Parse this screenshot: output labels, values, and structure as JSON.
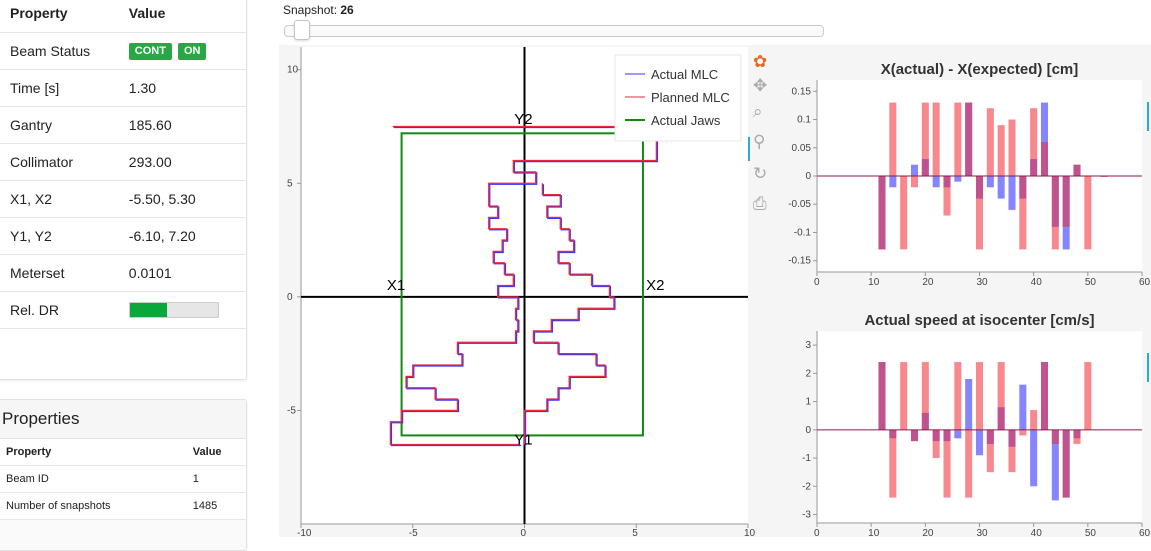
{
  "left_panel": {
    "header": {
      "property": "Property",
      "value": "Value"
    },
    "rows": [
      {
        "label": "Beam Status",
        "badges": [
          "CONT",
          "ON"
        ]
      },
      {
        "label": "Time [s]",
        "value": "1.30"
      },
      {
        "label": "Gantry",
        "value": "185.60"
      },
      {
        "label": "Collimator",
        "value": "293.00"
      },
      {
        "label": "X1, X2",
        "value": "-5.50, 5.30"
      },
      {
        "label": "Y1, Y2",
        "value": "-6.10, 7.20"
      },
      {
        "label": "Meterset",
        "value": "0.0101"
      },
      {
        "label": "Rel. DR",
        "progress": 0.42
      }
    ]
  },
  "properties_panel": {
    "title": "Properties",
    "header": {
      "property": "Property",
      "value": "Value"
    },
    "rows": [
      {
        "label": "Beam ID",
        "value": "1"
      },
      {
        "label": "Number of snapshots",
        "value": "1485"
      }
    ]
  },
  "slider": {
    "label": "Snapshot: ",
    "value": "26",
    "position_fraction": 0.017
  },
  "toolbar": {
    "icons": [
      "bokeh-logo-icon",
      "pan-icon",
      "box-zoom-icon",
      "wheel-zoom-icon",
      "reset-icon",
      "save-icon"
    ]
  },
  "colors": {
    "actual": "#3333ff",
    "planned": "#e8293e",
    "jaws": "#128a12",
    "badge": "#28a745",
    "dr_fill": "#0aa83c"
  },
  "chart_data": [
    {
      "type": "line",
      "title": "",
      "xlim": [
        -10,
        10
      ],
      "ylim": [
        -10,
        11
      ],
      "x_ticks": [
        -10,
        -5,
        0,
        5,
        10
      ],
      "y_ticks": [
        -5,
        0,
        5,
        10
      ],
      "legend": [
        "Actual MLC",
        "Planned MLC",
        "Actual Jaws"
      ],
      "legend_position": "top-right",
      "annotations": [
        {
          "text": "X1",
          "x": -5.8,
          "y": 0.3
        },
        {
          "text": "X2",
          "x": 5.8,
          "y": 0.3
        },
        {
          "text": "Y2",
          "x": -0.1,
          "y": 7.6
        },
        {
          "text": "Y1",
          "x": -0.1,
          "y": -6.5
        }
      ],
      "jaws": {
        "x1": -5.5,
        "x2": 5.3,
        "y1": -6.1,
        "y2": 7.2
      },
      "mlc_outline": [
        [
          -5.9,
          7.5
        ],
        [
          5.9,
          7.5
        ],
        [
          5.9,
          7.5
        ],
        [
          5.9,
          7.0
        ],
        [
          5.9,
          6.0
        ],
        [
          -0.5,
          6.0
        ],
        [
          -0.5,
          5.5
        ],
        [
          0.5,
          5.5
        ],
        [
          0.5,
          5.0
        ],
        [
          -1.6,
          5.0
        ],
        [
          -1.6,
          4.0
        ],
        [
          -1.2,
          4.0
        ],
        [
          -1.2,
          3.5
        ],
        [
          -1.6,
          3.5
        ],
        [
          -1.6,
          3.0
        ],
        [
          -0.8,
          3.0
        ],
        [
          -0.8,
          2.5
        ],
        [
          -1.0,
          2.5
        ],
        [
          -1.0,
          2.0
        ],
        [
          -1.4,
          2.0
        ],
        [
          -1.4,
          1.5
        ],
        [
          -0.9,
          1.5
        ],
        [
          -0.9,
          1.0
        ],
        [
          -0.5,
          1.0
        ],
        [
          -0.5,
          0.5
        ],
        [
          -1.2,
          0.5
        ],
        [
          -1.2,
          0.0
        ],
        [
          -0.3,
          0.0
        ],
        [
          -0.3,
          -0.5
        ],
        [
          -0.4,
          -0.5
        ],
        [
          -0.4,
          -1.0
        ],
        [
          -0.3,
          -1.0
        ],
        [
          -0.3,
          -1.5
        ],
        [
          -0.4,
          -1.5
        ],
        [
          -0.4,
          -2.0
        ],
        [
          -3.0,
          -2.0
        ],
        [
          -3.0,
          -2.5
        ],
        [
          -2.8,
          -2.5
        ],
        [
          -2.8,
          -3.0
        ],
        [
          -5.0,
          -3.0
        ],
        [
          -5.0,
          -3.5
        ],
        [
          -5.3,
          -3.5
        ],
        [
          -5.3,
          -4.0
        ],
        [
          -4.0,
          -4.0
        ],
        [
          -4.0,
          -4.5
        ],
        [
          -3.0,
          -4.5
        ],
        [
          -3.0,
          -5.0
        ],
        [
          -5.5,
          -5.0
        ],
        [
          -5.5,
          -5.5
        ],
        [
          -6.0,
          -5.5
        ],
        [
          -6.0,
          -6.5
        ],
        [
          -0.2,
          -6.5
        ]
      ],
      "mlc_right": [
        [
          0.0,
          -6.5
        ],
        [
          0.0,
          -5.0
        ],
        [
          1.0,
          -5.0
        ],
        [
          1.0,
          -4.5
        ],
        [
          1.5,
          -4.5
        ],
        [
          1.5,
          -4.0
        ],
        [
          2.0,
          -4.0
        ],
        [
          2.0,
          -3.5
        ],
        [
          3.6,
          -3.5
        ],
        [
          3.6,
          -3.0
        ],
        [
          3.2,
          -3.0
        ],
        [
          3.2,
          -2.5
        ],
        [
          1.5,
          -2.5
        ],
        [
          1.5,
          -2.0
        ],
        [
          0.4,
          -2.0
        ],
        [
          0.4,
          -1.5
        ],
        [
          1.2,
          -1.5
        ],
        [
          1.2,
          -1.0
        ],
        [
          2.4,
          -1.0
        ],
        [
          2.4,
          -0.5
        ],
        [
          4.0,
          -0.5
        ],
        [
          4.0,
          0.0
        ],
        [
          3.8,
          0.0
        ],
        [
          3.8,
          0.5
        ],
        [
          3.0,
          0.5
        ],
        [
          3.0,
          1.0
        ],
        [
          2.0,
          1.0
        ],
        [
          2.0,
          1.5
        ],
        [
          1.5,
          1.5
        ],
        [
          1.5,
          2.0
        ],
        [
          2.2,
          2.0
        ],
        [
          2.2,
          2.5
        ],
        [
          2.0,
          2.5
        ],
        [
          2.0,
          3.0
        ],
        [
          1.6,
          3.0
        ],
        [
          1.6,
          3.5
        ],
        [
          1.0,
          3.5
        ],
        [
          1.0,
          4.0
        ],
        [
          1.6,
          4.0
        ],
        [
          1.6,
          4.5
        ],
        [
          0.8,
          4.5
        ],
        [
          0.8,
          5.0
        ]
      ]
    },
    {
      "type": "bar",
      "title": "X(actual) - X(expected) [cm]",
      "xlim": [
        0,
        60
      ],
      "ylim": [
        -0.17,
        0.17
      ],
      "x_ticks": [
        0,
        10,
        20,
        30,
        40,
        50,
        60
      ],
      "y_ticks": [
        -0.15,
        -0.1,
        -0.05,
        0,
        0.05,
        0.1,
        0.15
      ],
      "series": [
        {
          "color": "blue",
          "x": [
            12,
            14,
            18,
            20,
            22,
            24,
            26,
            28,
            30,
            32,
            34,
            36,
            38,
            40,
            42,
            44,
            46,
            48
          ],
          "values": [
            -0.13,
            -0.02,
            0.02,
            0.03,
            -0.02,
            -0.02,
            -0.01,
            0.13,
            -0.04,
            -0.02,
            -0.04,
            -0.06,
            -0.04,
            0.03,
            0.13,
            -0.09,
            -0.13,
            0.02
          ]
        },
        {
          "color": "red",
          "x": [
            12,
            14,
            16,
            18,
            20,
            22,
            24,
            26,
            28,
            30,
            32,
            34,
            36,
            38,
            40,
            42,
            44,
            46,
            48,
            50,
            53
          ],
          "values": [
            -0.13,
            0.13,
            -0.13,
            -0.02,
            0.13,
            0.13,
            -0.07,
            0.13,
            0.13,
            -0.13,
            0.12,
            0.09,
            0.1,
            -0.13,
            0.12,
            0.06,
            -0.13,
            -0.09,
            0.02,
            -0.13,
            0.0
          ]
        }
      ]
    },
    {
      "type": "bar",
      "title": "Actual speed at isocenter [cm/s]",
      "xlim": [
        0,
        60
      ],
      "ylim": [
        -3.3,
        3.5
      ],
      "x_ticks": [
        0,
        10,
        20,
        30,
        40,
        50,
        60
      ],
      "y_ticks": [
        -3,
        -2,
        -1,
        0,
        1,
        2,
        3
      ],
      "series": [
        {
          "color": "blue",
          "x": [
            12,
            14,
            18,
            20,
            22,
            24,
            26,
            28,
            30,
            32,
            34,
            36,
            38,
            40,
            42,
            44,
            46,
            48
          ],
          "values": [
            2.4,
            -0.3,
            -0.4,
            0.6,
            -0.4,
            -0.4,
            -0.3,
            1.8,
            -0.9,
            -0.5,
            0.8,
            -0.6,
            1.6,
            -2.0,
            2.4,
            -2.5,
            -2.4,
            -0.3
          ]
        },
        {
          "color": "red",
          "x": [
            12,
            14,
            16,
            18,
            20,
            22,
            24,
            26,
            28,
            30,
            32,
            34,
            36,
            38,
            40,
            42,
            44,
            46,
            48,
            50
          ],
          "values": [
            2.4,
            -2.4,
            2.4,
            -0.4,
            2.4,
            -1.0,
            -2.4,
            2.4,
            -2.4,
            2.4,
            -1.5,
            2.4,
            -1.5,
            -0.2,
            0.7,
            2.4,
            -0.5,
            -2.4,
            -0.5,
            2.4
          ]
        }
      ]
    }
  ]
}
